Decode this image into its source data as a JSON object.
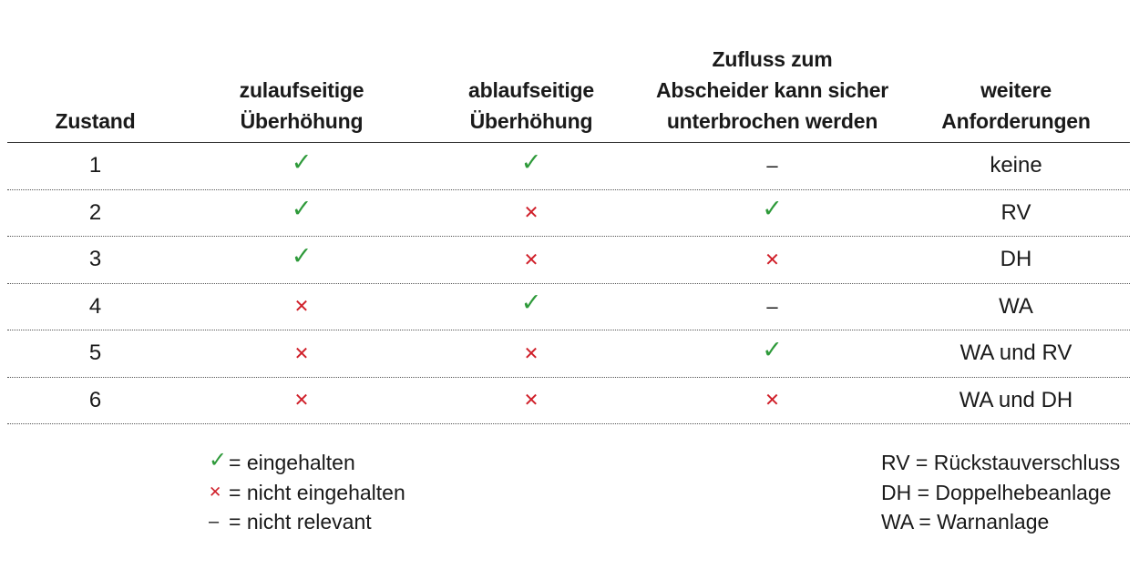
{
  "table": {
    "headers": [
      [
        "Zustand"
      ],
      [
        "zulaufseitige",
        "Überhöhung"
      ],
      [
        "ablaufseitige",
        "Überhöhung"
      ],
      [
        "Zufluss zum",
        "Abscheider kann sicher",
        "unterbrochen werden"
      ],
      [
        "weitere",
        "Anforderungen"
      ]
    ],
    "rows": [
      {
        "zustand": "1",
        "zulauf": "check",
        "ablauf": "check",
        "zufluss": "dash",
        "weitere": "keine"
      },
      {
        "zustand": "2",
        "zulauf": "check",
        "ablauf": "cross",
        "zufluss": "check",
        "weitere": "RV"
      },
      {
        "zustand": "3",
        "zulauf": "check",
        "ablauf": "cross",
        "zufluss": "cross",
        "weitere": "DH"
      },
      {
        "zustand": "4",
        "zulauf": "cross",
        "ablauf": "check",
        "zufluss": "dash",
        "weitere": "WA"
      },
      {
        "zustand": "5",
        "zulauf": "cross",
        "ablauf": "cross",
        "zufluss": "check",
        "weitere": "WA und RV"
      },
      {
        "zustand": "6",
        "zulauf": "cross",
        "ablauf": "cross",
        "zufluss": "cross",
        "weitere": "WA und DH"
      }
    ]
  },
  "symbols": {
    "check": "✓",
    "cross": "✕",
    "dash": "–"
  },
  "legend_symbols": [
    {
      "symbol": "check",
      "text": "= eingehalten"
    },
    {
      "symbol": "cross",
      "text": "=  nicht eingehalten"
    },
    {
      "symbol": "dash",
      "text": "=  nicht relevant"
    }
  ],
  "legend_abbrev": [
    "RV = Rückstauverschluss",
    "DH =  Doppelhebeanlage",
    "WA =  Warnanlage"
  ],
  "colors": {
    "check": "#2e9a3a",
    "cross": "#d0202a"
  }
}
